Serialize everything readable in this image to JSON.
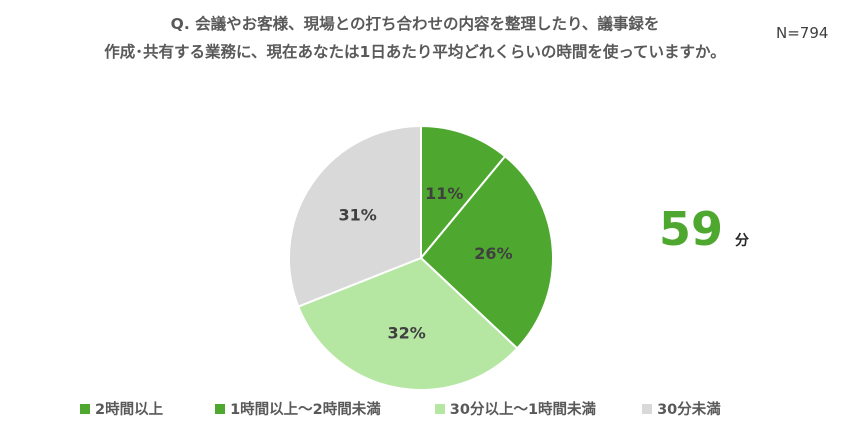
{
  "title_lines": [
    "Q.  会議やお客様、現場との打ち合わせの内容を整理したり、議事録を",
    "作成･共有する業務に、現在あなたは1日あたり平均どれくらいの時間を使っていますか。"
  ],
  "sample_size": "N=794",
  "average": {
    "value": "59",
    "unit": "分"
  },
  "colors": {
    "accent": "#4ea72e"
  },
  "chart_data": {
    "type": "pie",
    "title": "Q.  会議やお客様、現場との打ち合わせの内容を整理したり、議事録を作成･共有する業務に、現在あなたは1日あたり平均どれくらいの時間を使っていますか。",
    "categories": [
      "2時間以上",
      "1時間以上～2時間未満",
      "30分以上～1時間未満",
      "30分未満"
    ],
    "values": [
      11,
      26,
      32,
      31
    ],
    "value_labels": [
      "11%",
      "26%",
      "32%",
      "31%"
    ],
    "colors": [
      "#4ea72e",
      "#4ea72e",
      "#b5e6a2",
      "#d9d9d9"
    ],
    "start_angle": "12 o'clock",
    "direction": "clockwise",
    "legend": "bottom"
  }
}
